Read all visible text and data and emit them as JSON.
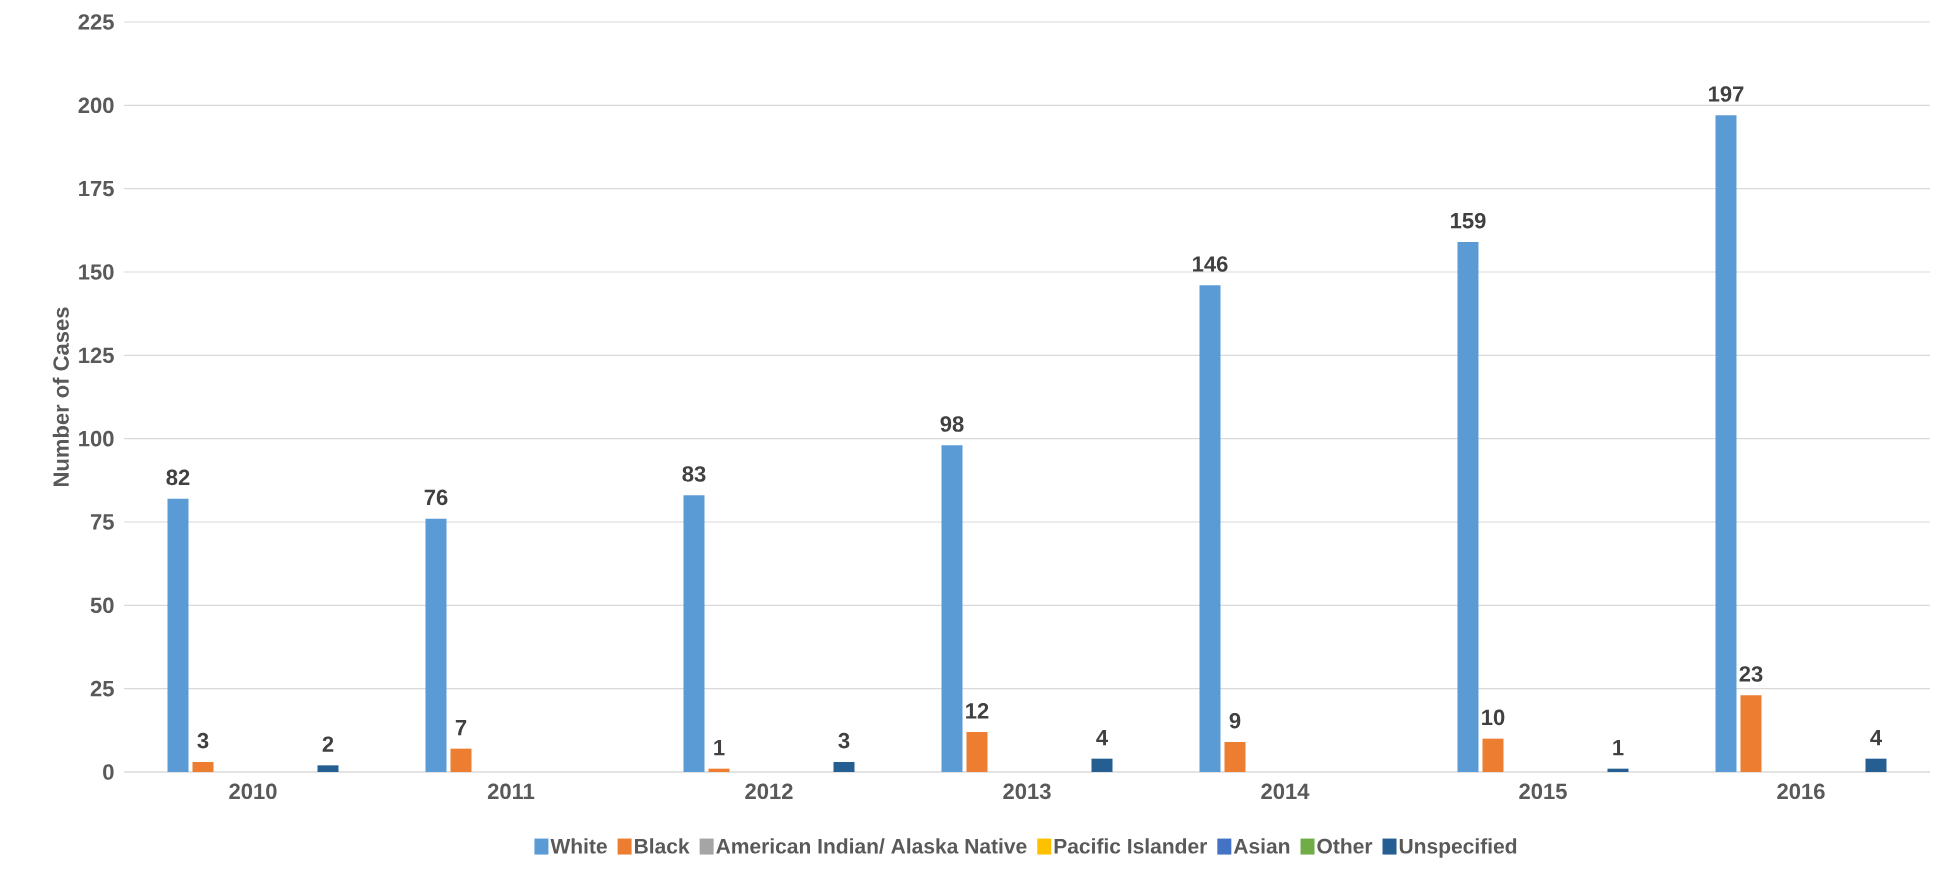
{
  "chart_data": {
    "type": "bar",
    "ylabel": "Number of Cases",
    "categories": [
      "2010",
      "2011",
      "2012",
      "2013",
      "2014",
      "2015",
      "2016"
    ],
    "series": [
      {
        "name": "White",
        "color": "#5b9bd5",
        "values": [
          82,
          76,
          83,
          98,
          146,
          159,
          197
        ],
        "value_labels": [
          "82",
          "76",
          "83",
          "98",
          "146",
          "159",
          "197"
        ]
      },
      {
        "name": "Black",
        "color": "#ed7d31",
        "values": [
          3,
          7,
          1,
          12,
          9,
          10,
          23
        ],
        "value_labels": [
          "3",
          "7",
          "1",
          "12",
          "9",
          "10",
          "23"
        ]
      },
      {
        "name": "American Indian/ Alaska Native",
        "color": "#a5a5a5",
        "values": [
          0,
          0,
          0,
          0,
          0,
          0,
          0
        ],
        "value_labels": [
          null,
          null,
          null,
          null,
          null,
          null,
          null
        ]
      },
      {
        "name": "Pacific Islander",
        "color": "#ffc000",
        "values": [
          0,
          0,
          0,
          0,
          0,
          0,
          0
        ],
        "value_labels": [
          null,
          null,
          null,
          null,
          null,
          null,
          null
        ]
      },
      {
        "name": "Asian",
        "color": "#4472c4",
        "values": [
          0,
          0,
          0,
          0,
          0,
          0,
          0
        ],
        "value_labels": [
          null,
          null,
          null,
          null,
          null,
          null,
          null
        ]
      },
      {
        "name": "Other",
        "color": "#70ad47",
        "values": [
          0,
          0,
          0,
          0,
          0,
          0,
          0
        ],
        "value_labels": [
          null,
          null,
          null,
          null,
          null,
          null,
          null
        ]
      },
      {
        "name": "Unspecified",
        "color": "#255e91",
        "values": [
          2,
          0,
          3,
          4,
          0,
          1,
          4
        ],
        "value_labels": [
          "2",
          null,
          "3",
          "4",
          null,
          "1",
          "4"
        ]
      }
    ],
    "ylim": [
      0,
      225
    ],
    "yticks": [
      0,
      25,
      50,
      75,
      100,
      125,
      150,
      175,
      200,
      225
    ],
    "grid": "y",
    "legend": "bottom"
  }
}
